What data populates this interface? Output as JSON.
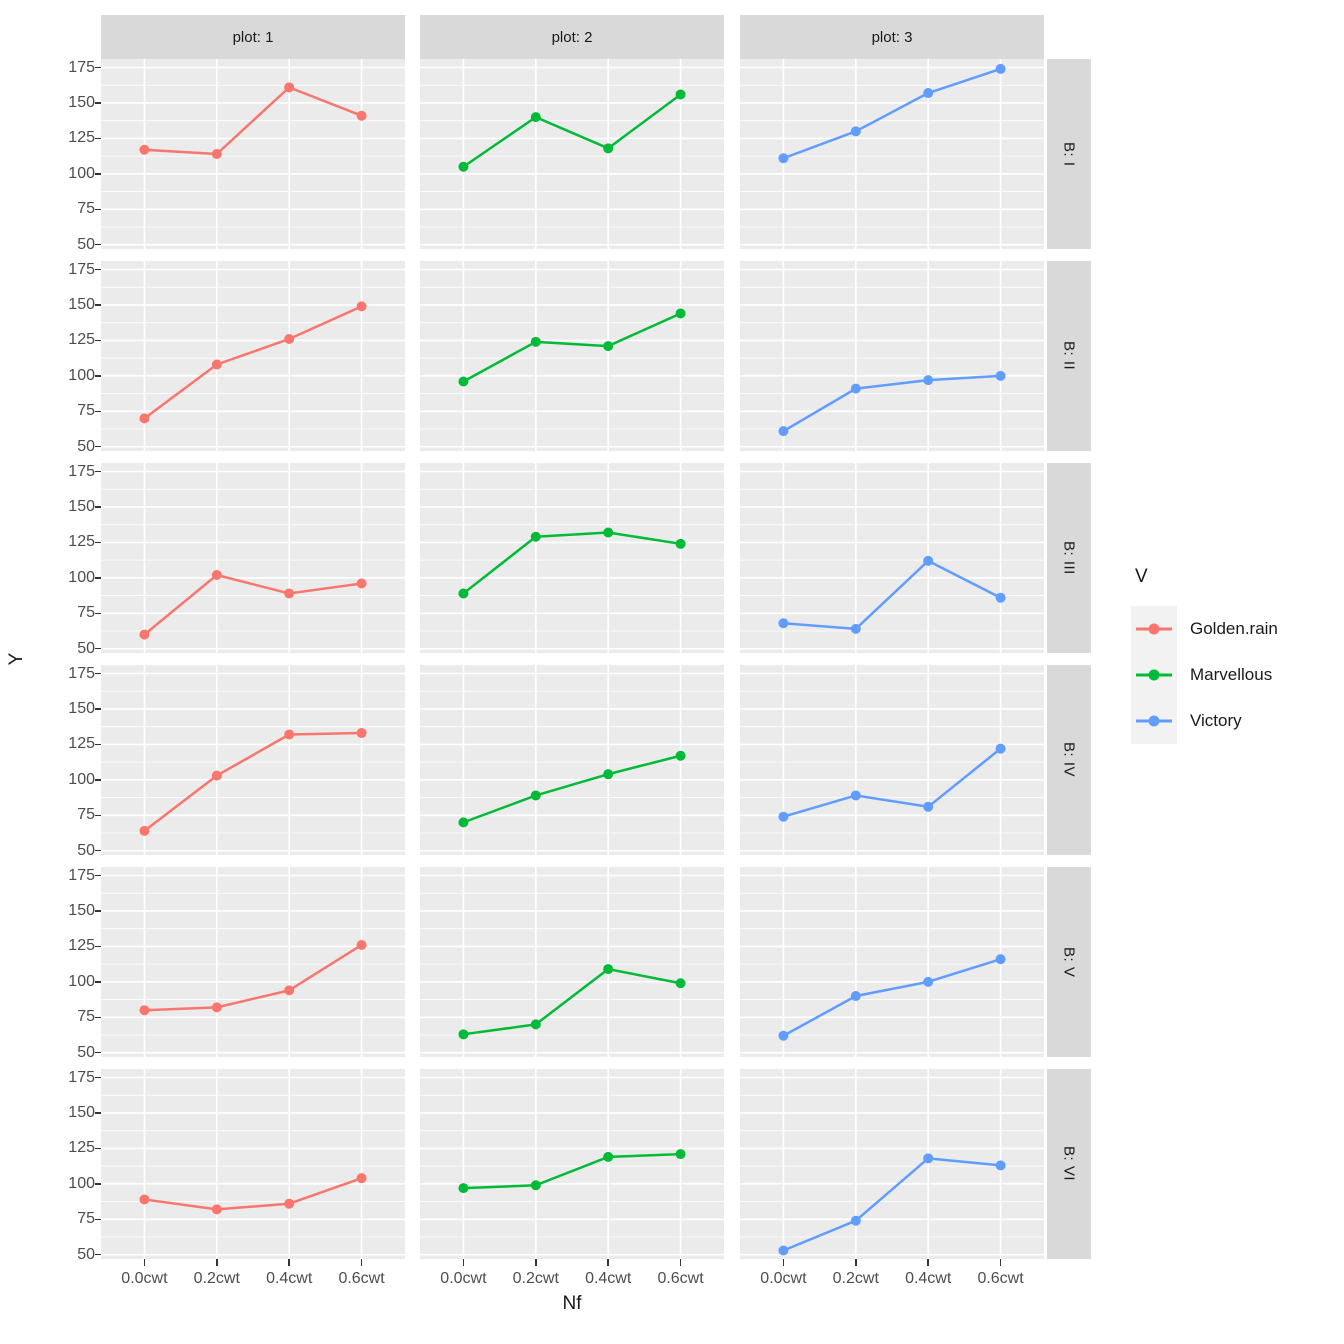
{
  "chart_data": {
    "type": "line",
    "title": "",
    "xlabel": "Nf",
    "ylabel": "Y",
    "x_categories": [
      "0.0cwt",
      "0.2cwt",
      "0.4cwt",
      "0.6cwt"
    ],
    "y_ticks": [
      175,
      150,
      125,
      100,
      75,
      50
    ],
    "ylim": [
      47,
      181
    ],
    "grid": true,
    "legend_position": "right",
    "panel_bg": "#EBEBEB",
    "strip_bg": "#D9D9D9",
    "gridline_color": "#FFFFFF",
    "axis_text_color": "#4D4D4D",
    "facet_columns": [
      {
        "label": "plot: 1",
        "series": "Golden.rain",
        "color": "#F8766D"
      },
      {
        "label": "plot: 2",
        "series": "Marvellous",
        "color": "#00BA38"
      },
      {
        "label": "plot: 3",
        "series": "Victory",
        "color": "#619CFF"
      }
    ],
    "facet_rows": [
      {
        "label": "B: I",
        "values": [
          [
            117,
            114,
            161,
            141
          ],
          [
            105,
            140,
            118,
            156
          ],
          [
            111,
            130,
            157,
            174
          ]
        ]
      },
      {
        "label": "B: II",
        "values": [
          [
            70,
            108,
            126,
            149
          ],
          [
            96,
            124,
            121,
            144
          ],
          [
            61,
            91,
            97,
            100
          ]
        ]
      },
      {
        "label": "B: III",
        "values": [
          [
            60,
            102,
            89,
            96
          ],
          [
            89,
            129,
            132,
            124
          ],
          [
            68,
            64,
            112,
            86
          ]
        ]
      },
      {
        "label": "B: IV",
        "values": [
          [
            64,
            103,
            132,
            133
          ],
          [
            70,
            89,
            104,
            117
          ],
          [
            74,
            89,
            81,
            122
          ]
        ]
      },
      {
        "label": "B: V",
        "values": [
          [
            80,
            82,
            94,
            126
          ],
          [
            63,
            70,
            109,
            99
          ],
          [
            62,
            90,
            100,
            116
          ]
        ]
      },
      {
        "label": "B: VI",
        "values": [
          [
            89,
            82,
            86,
            104
          ],
          [
            97,
            99,
            119,
            121
          ],
          [
            53,
            74,
            118,
            113
          ]
        ]
      }
    ],
    "legend": {
      "title": "V",
      "entries": [
        {
          "label": "Golden.rain",
          "color": "#F8766D"
        },
        {
          "label": "Marvellous",
          "color": "#00BA38"
        },
        {
          "label": "Victory",
          "color": "#619CFF"
        }
      ]
    }
  }
}
